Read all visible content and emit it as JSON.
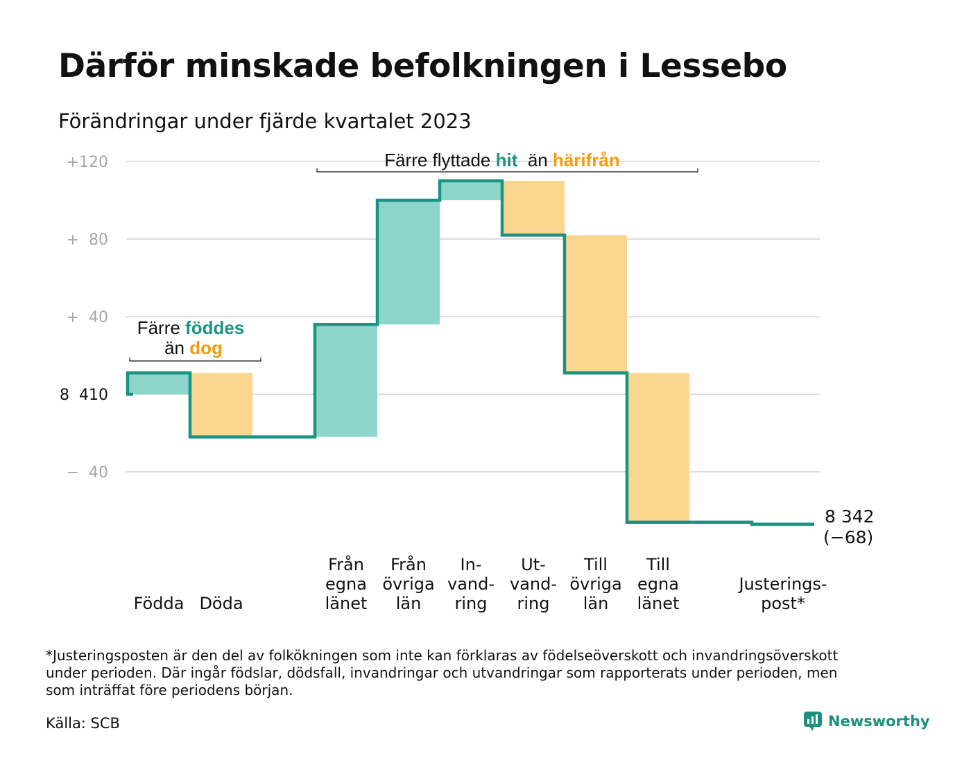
{
  "title": "Därför minskade befolkningen i Lessebo",
  "subtitle": "Förändringar under fjärde kvartalet 2023",
  "chart_data": {
    "type": "waterfall",
    "baseline": 8410,
    "end_value": 8342,
    "end_label": "8 342",
    "end_change_label": "(−68)",
    "ylim": [
      -72,
      122
    ],
    "grid": true,
    "y_ticks": [
      {
        "value": 120,
        "label": "+120",
        "base": false
      },
      {
        "value": 80,
        "label": "+  80",
        "base": false
      },
      {
        "value": 40,
        "label": "+  40",
        "base": false
      },
      {
        "value": 0,
        "label": "8  410",
        "base": true
      },
      {
        "value": -40,
        "label": "−  40",
        "base": false
      }
    ],
    "steps": [
      {
        "label_lines": [
          "Födda"
        ],
        "change": 11
      },
      {
        "label_lines": [
          "Döda"
        ],
        "change": -33
      },
      {
        "label_lines": [],
        "change": 0
      },
      {
        "label_lines": [
          "Från",
          "egna",
          "länet"
        ],
        "change": 58
      },
      {
        "label_lines": [
          "Från",
          "övriga",
          "län"
        ],
        "change": 64
      },
      {
        "label_lines": [
          "In-",
          "vand-",
          "ring"
        ],
        "change": 10
      },
      {
        "label_lines": [
          "Ut-",
          "vand-",
          "ring"
        ],
        "change": -28
      },
      {
        "label_lines": [
          "Till",
          "övriga",
          "län"
        ],
        "change": -71
      },
      {
        "label_lines": [
          "Till",
          "egna",
          "länet"
        ],
        "change": -77
      },
      {
        "label_lines": [],
        "change": 0
      },
      {
        "label_lines": [
          "Justerings-",
          "post*"
        ],
        "change": -1
      }
    ],
    "colors": {
      "line": "#1b9383",
      "increase": "#8dd5cb",
      "decrease": "#fad58e",
      "grid": "#dcdcdc",
      "hit": "#1b9383",
      "harifran": "#f39c12"
    },
    "annotations": {
      "births": {
        "line1_text": "Färre ",
        "line1_highlight": "föddes",
        "line2_text": "än ",
        "line2_highlight": "dog"
      },
      "moves": {
        "text1": "Färre flyttade ",
        "highlight1": "hit",
        "text2": "än ",
        "highlight2": "härifrån"
      }
    }
  },
  "footnote": [
    "*Justeringsposten är den del av folkökningen som inte kan förklaras av födelseöverskott och invandringsöverskott",
    "under perioden. Där ingår födslar, dödsfall, invandringar och utvandringar som rapporterats under perioden, men",
    "som inträffat före periodens början."
  ],
  "source": "Källa: SCB",
  "brand": {
    "name": "Newsworthy",
    "icon": "newsworthy-logo-icon"
  }
}
